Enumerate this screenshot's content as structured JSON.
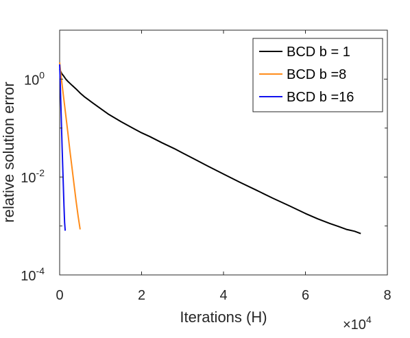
{
  "chart_data": {
    "type": "line",
    "xlabel": "Iterations (H)",
    "ylabel": "relative solution error",
    "x_multiplier_label": {
      "base": "×10",
      "exponent": "4"
    },
    "xlim": [
      0,
      80000
    ],
    "ylim": [
      0.0001,
      10
    ],
    "yscale": "log",
    "x_ticks": [
      {
        "value": 0,
        "label": "0"
      },
      {
        "value": 20000,
        "label": "2"
      },
      {
        "value": 40000,
        "label": "4"
      },
      {
        "value": 60000,
        "label": "6"
      },
      {
        "value": 80000,
        "label": "8"
      }
    ],
    "y_ticks": [
      {
        "value": 0.0001,
        "base": "10",
        "exp": "-4"
      },
      {
        "value": 0.01,
        "base": "10",
        "exp": "-2"
      },
      {
        "value": 1,
        "base": "10",
        "exp": "0"
      }
    ],
    "grid": false,
    "legend_position": "top-right",
    "series": [
      {
        "name": "BCD b = 1",
        "color": "#000000",
        "x": [
          0,
          500,
          1000,
          1500,
          2000,
          3000,
          4000,
          5000,
          6000,
          8000,
          10000,
          12000,
          15000,
          18000,
          20000,
          22000,
          25000,
          28000,
          30000,
          33000,
          36000,
          40000,
          44000,
          48000,
          52000,
          56000,
          60000,
          63000,
          66000,
          68000,
          70000,
          72000,
          73500
        ],
        "y": [
          1.6,
          1.3,
          1.15,
          1.0,
          0.9,
          0.75,
          0.63,
          0.52,
          0.44,
          0.33,
          0.25,
          0.19,
          0.135,
          0.098,
          0.08,
          0.067,
          0.05,
          0.038,
          0.031,
          0.023,
          0.017,
          0.0115,
          0.0078,
          0.0054,
          0.0037,
          0.0026,
          0.0018,
          0.0014,
          0.00112,
          0.00098,
          0.00085,
          0.00078,
          0.0007
        ]
      },
      {
        "name": "BCD b =8",
        "color": "#ff8c1a",
        "x": [
          0,
          200,
          500,
          1000,
          1500,
          2000,
          2500,
          3000,
          3500,
          4000,
          4500,
          5000
        ],
        "y": [
          2.2,
          1.5,
          0.9,
          0.4,
          0.18,
          0.08,
          0.035,
          0.016,
          0.0072,
          0.0033,
          0.0016,
          0.00085
        ]
      },
      {
        "name": "BCD b =16",
        "color": "#1010ee",
        "x": [
          0,
          150,
          300,
          450,
          600,
          750,
          900,
          1050,
          1200,
          1350
        ],
        "y": [
          2.0,
          0.8,
          0.3,
          0.11,
          0.04,
          0.016,
          0.0065,
          0.0026,
          0.0012,
          0.0008
        ]
      }
    ]
  }
}
